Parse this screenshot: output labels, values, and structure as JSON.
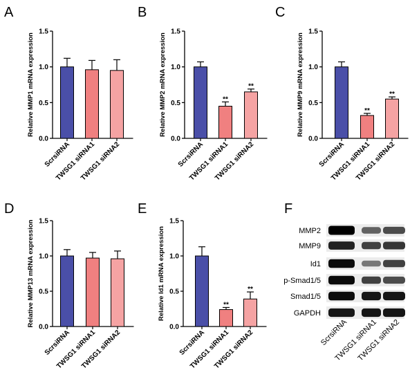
{
  "chart_data": [
    {
      "panel": "A",
      "type": "bar",
      "ylabel": "Relative MMP1 mRNA expression",
      "ylim": [
        0,
        1.5
      ],
      "yticks": [
        "0.0",
        "0.5",
        "1.0",
        "1.5"
      ],
      "categories": [
        "ScrsiRNA",
        "TWSG1 siRNA1",
        "TWSG1 siRNA2"
      ],
      "values": [
        1.0,
        0.96,
        0.95
      ],
      "errors": [
        0.12,
        0.13,
        0.15
      ],
      "significance": [
        "",
        "",
        ""
      ],
      "colors": [
        "#4a4fa8",
        "#f08080",
        "#f5a3a3"
      ]
    },
    {
      "panel": "B",
      "type": "bar",
      "ylabel": "Relative MMP2 mRNA expression",
      "ylim": [
        0,
        1.5
      ],
      "yticks": [
        "0.0",
        "0.5",
        "1.0",
        "1.5"
      ],
      "categories": [
        "ScrsiRNA",
        "TWSG1 siRNA1",
        "TWSG1 siRNA2"
      ],
      "values": [
        1.0,
        0.45,
        0.65
      ],
      "errors": [
        0.07,
        0.06,
        0.04
      ],
      "significance": [
        "",
        "**",
        "**"
      ],
      "colors": [
        "#4a4fa8",
        "#f08080",
        "#f5a3a3"
      ]
    },
    {
      "panel": "C",
      "type": "bar",
      "ylabel": "Relative MMP9 mRNA expression",
      "ylim": [
        0,
        1.5
      ],
      "yticks": [
        "0.0",
        "0.5",
        "1.0",
        "1.5"
      ],
      "categories": [
        "ScrsiRNA",
        "TWSG1 siRNA1",
        "TWSG1 siRNA2"
      ],
      "values": [
        1.0,
        0.32,
        0.55
      ],
      "errors": [
        0.07,
        0.03,
        0.03
      ],
      "significance": [
        "",
        "**",
        "**"
      ],
      "colors": [
        "#4a4fa8",
        "#f08080",
        "#f5a3a3"
      ]
    },
    {
      "panel": "D",
      "type": "bar",
      "ylabel": "Relative MMP13 mRNA expression",
      "ylim": [
        0,
        1.5
      ],
      "yticks": [
        "0.0",
        "0.5",
        "1.0",
        "1.5"
      ],
      "categories": [
        "ScrsiRNA",
        "TWSG1 siRNA1",
        "TWSG1 siRNA2"
      ],
      "values": [
        1.0,
        0.97,
        0.96
      ],
      "errors": [
        0.09,
        0.08,
        0.11
      ],
      "significance": [
        "",
        "",
        ""
      ],
      "colors": [
        "#4a4fa8",
        "#f08080",
        "#f5a3a3"
      ]
    },
    {
      "panel": "E",
      "type": "bar",
      "ylabel": "Relative Id1 mRNA expression",
      "ylim": [
        0,
        1.5
      ],
      "yticks": [
        "0.0",
        "0.5",
        "1.0",
        "1.5"
      ],
      "categories": [
        "ScrsiRNA",
        "TWSG1 siRNA1",
        "TWSG1 siRNA2"
      ],
      "values": [
        1.0,
        0.24,
        0.39
      ],
      "errors": [
        0.13,
        0.03,
        0.1
      ],
      "significance": [
        "",
        "**",
        "**"
      ],
      "colors": [
        "#4a4fa8",
        "#f08080",
        "#f5a3a3"
      ]
    }
  ],
  "western_blot": {
    "panel": "F",
    "rows": [
      "MMP2",
      "MMP9",
      "Id1",
      "p-Smad1/5",
      "Smad1/5",
      "GAPDH"
    ],
    "lanes": [
      "ScrsiRNA",
      "TWSG1 siRNA1",
      "TWSG1 siRNA2"
    ],
    "band_intensity": [
      [
        1.0,
        0.55,
        0.65
      ],
      [
        0.85,
        0.7,
        0.75
      ],
      [
        0.95,
        0.45,
        0.7
      ],
      [
        0.95,
        0.7,
        0.65
      ],
      [
        0.95,
        0.9,
        0.9
      ],
      [
        0.9,
        0.9,
        0.9
      ]
    ]
  }
}
